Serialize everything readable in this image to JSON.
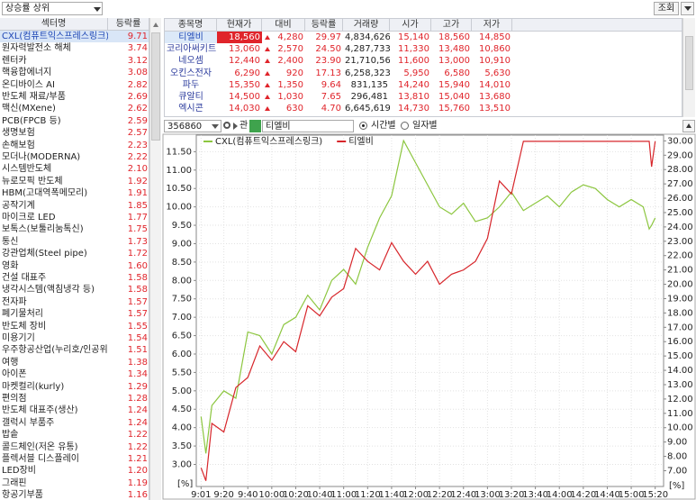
{
  "controls": {
    "sort_select": "상승률 상위",
    "query_button": "조회"
  },
  "sector_table": {
    "headers": [
      "섹터명",
      "등락률"
    ],
    "rows": [
      [
        "CXL(컴퓨트익스프레스링크)",
        "9.71"
      ],
      [
        "원자력발전소 해체",
        "3.74"
      ],
      [
        "렌터카",
        "3.12"
      ],
      [
        "핵융합에너지",
        "3.08"
      ],
      [
        "온디바이스 AI",
        "2.82"
      ],
      [
        "반도체 재료/부품",
        "2.69"
      ],
      [
        "맥신(MXene)",
        "2.62"
      ],
      [
        "PCB(FPCB 등)",
        "2.59"
      ],
      [
        "생명보험",
        "2.57"
      ],
      [
        "손해보험",
        "2.23"
      ],
      [
        "모더나(MODERNA)",
        "2.22"
      ],
      [
        "시스템반도체",
        "2.10"
      ],
      [
        "뉴로모픽 반도체",
        "1.92"
      ],
      [
        "HBM(고대역폭메모리)",
        "1.91"
      ],
      [
        "공작기계",
        "1.85"
      ],
      [
        "마이크로 LED",
        "1.77"
      ],
      [
        "보톡스(보툴리눔톡신)",
        "1.75"
      ],
      [
        "통신",
        "1.73"
      ],
      [
        "강관업체(Steel pipe)",
        "1.72"
      ],
      [
        "영화",
        "1.60"
      ],
      [
        "건설 대표주",
        "1.58"
      ],
      [
        "냉각시스템(액침냉각 등)",
        "1.58"
      ],
      [
        "전자파",
        "1.57"
      ],
      [
        "폐기물처리",
        "1.57"
      ],
      [
        "반도체 장비",
        "1.55"
      ],
      [
        "미용기기",
        "1.54"
      ],
      [
        "우주항공산업(누리호/인공위",
        "1.51"
      ],
      [
        "여행",
        "1.38"
      ],
      [
        "아이폰",
        "1.34"
      ],
      [
        "마켓컬리(kurly)",
        "1.29"
      ],
      [
        "편의점",
        "1.28"
      ],
      [
        "반도체 대표주(생산)",
        "1.24"
      ],
      [
        "갤럭시 부품주",
        "1.24"
      ],
      [
        "밥솥",
        "1.22"
      ],
      [
        "콜드체인(저온 유통)",
        "1.22"
      ],
      [
        "플렉서블 디스플레이",
        "1.21"
      ],
      [
        "LED장비",
        "1.20"
      ],
      [
        "그래핀",
        "1.19"
      ],
      [
        "항공기부품",
        "1.16"
      ]
    ]
  },
  "stock_table": {
    "headers": [
      "종목명",
      "현재가",
      "대비",
      "등락률",
      "거래량",
      "시가",
      "고가",
      "저가"
    ],
    "rows": [
      [
        "티엘비",
        "18,560",
        "4,280",
        "29.97",
        "4,834,626",
        "15,140",
        "18,560",
        "14,850"
      ],
      [
        "코리아써키트",
        "13,060",
        "2,570",
        "24.50",
        "4,287,733",
        "11,330",
        "13,480",
        "10,860"
      ],
      [
        "네오셈",
        "12,440",
        "2,400",
        "23.90",
        "21,710,562",
        "11,600",
        "13,000",
        "10,910"
      ],
      [
        "오킨스전자",
        "6,290",
        "920",
        "17.13",
        "6,258,323",
        "5,950",
        "6,580",
        "5,630"
      ],
      [
        "파두",
        "15,350",
        "1,350",
        "9.64",
        "831,135",
        "14,240",
        "15,940",
        "14,010"
      ],
      [
        "큐알티",
        "14,500",
        "1,030",
        "7.65",
        "296,481",
        "13,810",
        "15,040",
        "13,680"
      ],
      [
        "엑시콘",
        "14,030",
        "630",
        "4.70",
        "6,645,619",
        "14,730",
        "15,760",
        "13,510"
      ]
    ]
  },
  "chart_controls": {
    "code": "356860",
    "tag": "관",
    "name": "티엘비",
    "radio": [
      "시간별",
      "일자별"
    ]
  },
  "chart_data": {
    "type": "line",
    "x": [
      "9:01",
      "9:05",
      "9:10",
      "9:20",
      "9:30",
      "9:40",
      "9:50",
      "10:00",
      "10:10",
      "10:20",
      "10:30",
      "10:40",
      "10:50",
      "11:00",
      "11:10",
      "11:20",
      "11:30",
      "11:40",
      "11:50",
      "12:00",
      "12:10",
      "12:20",
      "12:30",
      "12:40",
      "12:50",
      "13:00",
      "13:10",
      "13:20",
      "13:30",
      "13:40",
      "13:50",
      "14:00",
      "14:10",
      "14:20",
      "14:30",
      "14:40",
      "14:50",
      "15:00",
      "15:10",
      "15:15",
      "15:17",
      "15:20"
    ],
    "series": [
      {
        "name": "CXL(컴퓨트익스프레스링크)",
        "color": "#8cc63f",
        "values": [
          4.3,
          3.3,
          4.6,
          5.0,
          4.8,
          6.6,
          6.5,
          6.0,
          6.8,
          7.0,
          7.6,
          7.2,
          8.0,
          8.3,
          7.9,
          8.9,
          9.7,
          10.3,
          11.8,
          11.2,
          10.6,
          10.0,
          9.8,
          10.1,
          9.6,
          9.7,
          10.0,
          10.4,
          9.9,
          10.1,
          10.3,
          10.0,
          10.4,
          10.6,
          10.5,
          10.2,
          10.0,
          10.2,
          10.0,
          9.4,
          9.5,
          9.7
        ]
      },
      {
        "name": "티엘비",
        "color": "#d7262b",
        "axis": "y2",
        "values": [
          7.2,
          6.3,
          10.3,
          9.7,
          12.8,
          13.5,
          15.7,
          14.7,
          16.0,
          15.3,
          18.5,
          17.8,
          19.1,
          19.7,
          22.5,
          21.6,
          21.0,
          22.9,
          21.6,
          20.7,
          21.6,
          20.0,
          20.7,
          21.0,
          21.6,
          23.2,
          27.2,
          26.3,
          29.97,
          29.97,
          29.97,
          29.97,
          29.97,
          29.97,
          29.97,
          29.97,
          29.97,
          29.97,
          29.97,
          29.97,
          28.2,
          29.97
        ]
      }
    ],
    "xlim": [
      "8:57",
      "15:27"
    ],
    "xticks": [
      "9:01",
      "9:20",
      "9:40",
      "10:00",
      "10:20",
      "10:40",
      "11:00",
      "11:20",
      "11:40",
      "12:00",
      "12:20",
      "12:40",
      "13:00",
      "13:20",
      "13:40",
      "14:00",
      "14:20",
      "14:40",
      "15:00",
      "15:20"
    ],
    "ylim": [
      2.4,
      11.95
    ],
    "yticks": [
      {
        "value": 3,
        "label": "3.00"
      },
      {
        "value": 3.5,
        "label": "3.50"
      },
      {
        "value": 4,
        "label": "4.00"
      },
      {
        "value": 4.5,
        "label": "4.50"
      },
      {
        "value": 5,
        "label": "5.00"
      },
      {
        "value": 5.5,
        "label": "5.50"
      },
      {
        "value": 6,
        "label": "6.00"
      },
      {
        "value": 6.5,
        "label": "6.50"
      },
      {
        "value": 7,
        "label": "7.00"
      },
      {
        "value": 7.5,
        "label": "7.50"
      },
      {
        "value": 8,
        "label": "8.00"
      },
      {
        "value": 8.5,
        "label": "8.50"
      },
      {
        "value": 9,
        "label": "9.00"
      },
      {
        "value": 9.5,
        "label": "9.50"
      },
      {
        "value": 10,
        "label": "10.00"
      },
      {
        "value": 10.5,
        "label": "10.50"
      },
      {
        "value": 11,
        "label": "11.00"
      },
      {
        "value": 11.5,
        "label": "11.50"
      }
    ],
    "y2lim": [
      5.9,
      30.4
    ],
    "y2ticks": [
      {
        "value": 7,
        "label": "7.00"
      },
      {
        "value": 8,
        "label": "8.00"
      },
      {
        "value": 9,
        "label": "9.00"
      },
      {
        "value": 10,
        "label": "10.00"
      },
      {
        "value": 11,
        "label": "11.00"
      },
      {
        "value": 12,
        "label": "12.00"
      },
      {
        "value": 13,
        "label": "13.00"
      },
      {
        "value": 14,
        "label": "14.00"
      },
      {
        "value": 15,
        "label": "15.00"
      },
      {
        "value": 16,
        "label": "16.00"
      },
      {
        "value": 17,
        "label": "17.00"
      },
      {
        "value": 18,
        "label": "18.00"
      },
      {
        "value": 19,
        "label": "19.00"
      },
      {
        "value": 20,
        "label": "20.00"
      },
      {
        "value": 21,
        "label": "21.00"
      },
      {
        "value": 22,
        "label": "22.00"
      },
      {
        "value": 23,
        "label": "23.00"
      },
      {
        "value": 24,
        "label": "24.00"
      },
      {
        "value": 25,
        "label": "25.00"
      },
      {
        "value": 26,
        "label": "26.00"
      },
      {
        "value": 27,
        "label": "27.00"
      },
      {
        "value": 28,
        "label": "28.00"
      },
      {
        "value": 29,
        "label": "29.00"
      },
      {
        "value": 30,
        "label": "30.00"
      }
    ],
    "y_unit": "[%]",
    "y2_unit": "[%]",
    "grid": true
  }
}
